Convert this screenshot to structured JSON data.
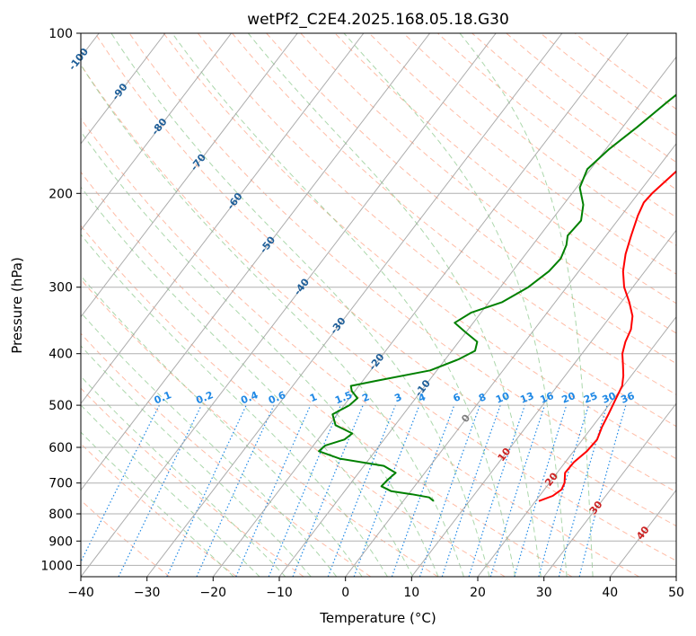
{
  "chart_data": {
    "type": "line",
    "title": "wetPf2_C2E4.2025.168.05.18.G30",
    "xlabel": "Temperature (°C)",
    "ylabel": "Pressure (hPa)",
    "xlim": [
      -40,
      50
    ],
    "ylim": [
      1050,
      100
    ],
    "y_scale": "log",
    "x_ticks": [
      -40,
      -30,
      -20,
      -10,
      0,
      10,
      20,
      30,
      40,
      50
    ],
    "y_ticks": [
      100,
      200,
      300,
      400,
      500,
      600,
      700,
      800,
      900,
      1000
    ],
    "grid": true,
    "colors": {
      "temperature": "#ff0000",
      "dewpoint": "#008000",
      "isotherm": "#9e9e9e",
      "dry_adiabat": "#ff9f80",
      "moist_adiabat": "#8fc98f",
      "mixing_ratio": "#1e88e5",
      "isotherm_label": "#1f5f99",
      "hot_isotherm_label": "#cc2222"
    },
    "series": [
      {
        "key": "temperature",
        "points": [
          {
            "p": 757,
            "t": 20.5
          },
          {
            "p": 740,
            "t": 22.0
          },
          {
            "p": 720,
            "t": 22.6
          },
          {
            "p": 700,
            "t": 22.3
          },
          {
            "p": 670,
            "t": 21.2
          },
          {
            "p": 640,
            "t": 21.3
          },
          {
            "p": 610,
            "t": 22.0
          },
          {
            "p": 580,
            "t": 22.2
          },
          {
            "p": 550,
            "t": 21.5
          },
          {
            "p": 520,
            "t": 21.0
          },
          {
            "p": 490,
            "t": 20.4
          },
          {
            "p": 460,
            "t": 19.8
          },
          {
            "p": 440,
            "t": 18.8
          },
          {
            "p": 420,
            "t": 17.5
          },
          {
            "p": 400,
            "t": 16.1
          },
          {
            "p": 380,
            "t": 15.2
          },
          {
            "p": 360,
            "t": 14.6
          },
          {
            "p": 340,
            "t": 13.3
          },
          {
            "p": 320,
            "t": 11.2
          },
          {
            "p": 300,
            "t": 8.7
          },
          {
            "p": 280,
            "t": 6.7
          },
          {
            "p": 260,
            "t": 5.1
          },
          {
            "p": 240,
            "t": 3.8
          },
          {
            "p": 220,
            "t": 2.5
          },
          {
            "p": 208,
            "t": 1.9
          },
          {
            "p": 200,
            "t": 2.1
          },
          {
            "p": 185,
            "t": 3.0
          },
          {
            "p": 170,
            "t": 3.9
          },
          {
            "p": 155,
            "t": 4.9
          },
          {
            "p": 145,
            "t": 5.6
          },
          {
            "p": 135,
            "t": 6.5
          },
          {
            "p": 125,
            "t": 7.6
          },
          {
            "p": 115,
            "t": 8.8
          },
          {
            "p": 108,
            "t": 9.8
          },
          {
            "p": 100,
            "t": 11.0
          }
        ]
      },
      {
        "key": "dewpoint",
        "points": [
          {
            "p": 757,
            "t": 4.6
          },
          {
            "p": 745,
            "t": 3.5
          },
          {
            "p": 735,
            "t": 0.5
          },
          {
            "p": 725,
            "t": -3.0
          },
          {
            "p": 710,
            "t": -5.0
          },
          {
            "p": 690,
            "t": -4.8
          },
          {
            "p": 670,
            "t": -4.4
          },
          {
            "p": 650,
            "t": -7.0
          },
          {
            "p": 630,
            "t": -14.5
          },
          {
            "p": 610,
            "t": -18.5
          },
          {
            "p": 595,
            "t": -18.2
          },
          {
            "p": 580,
            "t": -16.0
          },
          {
            "p": 565,
            "t": -15.5
          },
          {
            "p": 545,
            "t": -19.0
          },
          {
            "p": 520,
            "t": -20.7
          },
          {
            "p": 500,
            "t": -19.2
          },
          {
            "p": 485,
            "t": -18.8
          },
          {
            "p": 470,
            "t": -20.5
          },
          {
            "p": 460,
            "t": -21.2
          },
          {
            "p": 450,
            "t": -18.0
          },
          {
            "p": 430,
            "t": -11.0
          },
          {
            "p": 410,
            "t": -8.0
          },
          {
            "p": 395,
            "t": -6.5
          },
          {
            "p": 380,
            "t": -7.2
          },
          {
            "p": 365,
            "t": -10.0
          },
          {
            "p": 350,
            "t": -12.8
          },
          {
            "p": 335,
            "t": -11.5
          },
          {
            "p": 320,
            "t": -8.0
          },
          {
            "p": 300,
            "t": -5.8
          },
          {
            "p": 280,
            "t": -4.5
          },
          {
            "p": 265,
            "t": -4.2
          },
          {
            "p": 250,
            "t": -4.9
          },
          {
            "p": 240,
            "t": -5.8
          },
          {
            "p": 225,
            "t": -5.5
          },
          {
            "p": 210,
            "t": -7.0
          },
          {
            "p": 195,
            "t": -9.5
          },
          {
            "p": 180,
            "t": -10.5
          },
          {
            "p": 165,
            "t": -9.5
          },
          {
            "p": 150,
            "t": -7.8
          },
          {
            "p": 135,
            "t": -6.2
          },
          {
            "p": 122,
            "t": -4.5
          },
          {
            "p": 112,
            "t": -2.5
          },
          {
            "p": 104,
            "t": -0.8
          },
          {
            "p": 100,
            "t": 0.2
          }
        ]
      }
    ],
    "isotherm_labels": [
      "-100",
      "-90",
      "-80",
      "-70",
      "-60",
      "-50",
      "-40",
      "-30",
      "-20",
      "-10",
      "0"
    ],
    "hot_isotherm_labels": [
      "10",
      "20",
      "30",
      "40"
    ],
    "mixing_ratio_labels": [
      "0.1",
      "0.2",
      "0.4",
      "0.6",
      "1",
      "1.5",
      "2",
      "3",
      "4",
      "6",
      "8",
      "10",
      "13",
      "16",
      "20",
      "25",
      "30",
      "36"
    ]
  }
}
